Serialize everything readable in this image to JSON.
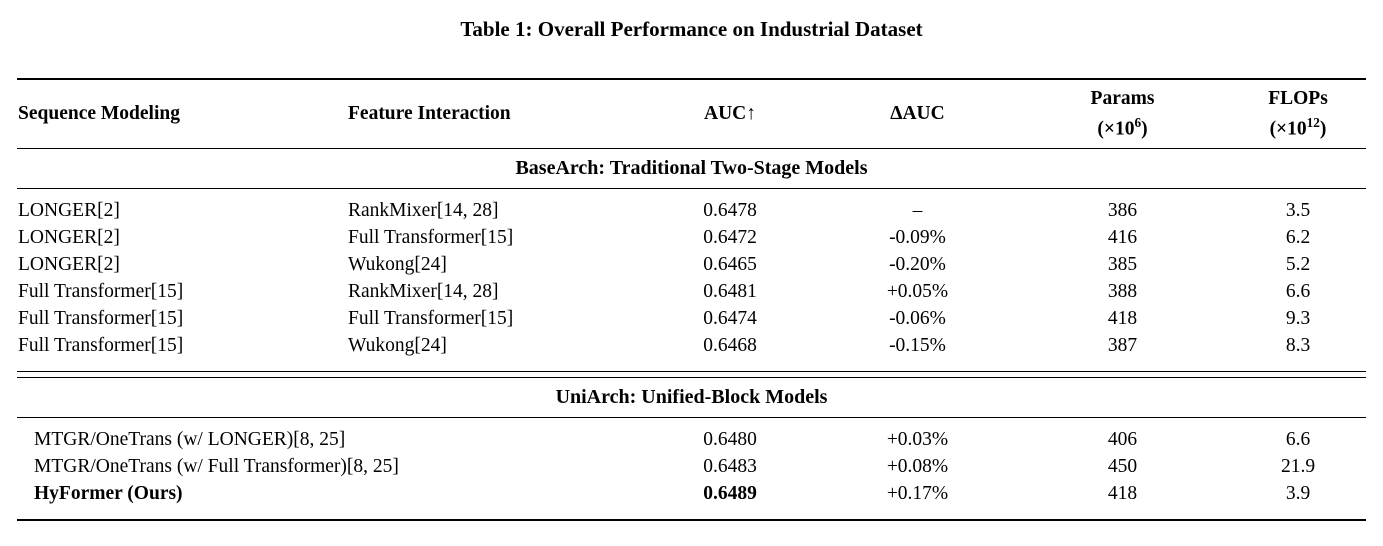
{
  "colors": {
    "background": "#ffffff",
    "text": "#000000",
    "rule": "#000000"
  },
  "title": "Table 1: Overall Performance on Industrial Dataset",
  "table": {
    "columns": [
      {
        "label": "Sequence Modeling",
        "align": "left"
      },
      {
        "label": "Feature Interaction",
        "align": "left"
      },
      {
        "label": "AUC↑",
        "align": "center"
      },
      {
        "label": "ΔAUC",
        "align": "center"
      },
      {
        "label": "Params",
        "sub": {
          "prefix": "(×10",
          "exp": "6",
          "suffix": ")"
        },
        "align": "center"
      },
      {
        "label": "FLOPs",
        "sub": {
          "prefix": "(×10",
          "exp": "12",
          "suffix": ")"
        },
        "align": "center"
      }
    ],
    "sections": [
      {
        "header": "BaseArch: Traditional Two-Stage Models",
        "merged_first_two_columns": false,
        "rows": [
          {
            "sequence_modeling": "LONGER[2]",
            "feature_interaction": "RankMixer[14, 28]",
            "auc": "0.6478",
            "delta_auc": "–",
            "params": "386",
            "flops": "3.5"
          },
          {
            "sequence_modeling": "LONGER[2]",
            "feature_interaction": "Full Transformer[15]",
            "auc": "0.6472",
            "delta_auc": "-0.09%",
            "params": "416",
            "flops": "6.2"
          },
          {
            "sequence_modeling": "LONGER[2]",
            "feature_interaction": "Wukong[24]",
            "auc": "0.6465",
            "delta_auc": "-0.20%",
            "params": "385",
            "flops": "5.2"
          },
          {
            "sequence_modeling": "Full Transformer[15]",
            "feature_interaction": "RankMixer[14, 28]",
            "auc": "0.6481",
            "delta_auc": "+0.05%",
            "params": "388",
            "flops": "6.6"
          },
          {
            "sequence_modeling": "Full Transformer[15]",
            "feature_interaction": "Full Transformer[15]",
            "auc": "0.6474",
            "delta_auc": "-0.06%",
            "params": "418",
            "flops": "9.3"
          },
          {
            "sequence_modeling": "Full Transformer[15]",
            "feature_interaction": "Wukong[24]",
            "auc": "0.6468",
            "delta_auc": "-0.15%",
            "params": "387",
            "flops": "8.3"
          }
        ]
      },
      {
        "header": "UniArch: Unified-Block Models",
        "merged_first_two_columns": true,
        "rows": [
          {
            "model": "MTGR/OneTrans (w/ LONGER)[8, 25]",
            "bold": false,
            "auc": "0.6480",
            "auc_bold": false,
            "delta_auc": "+0.03%",
            "params": "406",
            "flops": "6.6"
          },
          {
            "model": "MTGR/OneTrans (w/ Full Transformer)[8, 25]",
            "bold": false,
            "auc": "0.6483",
            "auc_bold": false,
            "delta_auc": "+0.08%",
            "params": "450",
            "flops": "21.9"
          },
          {
            "model": "HyFormer (Ours)",
            "bold": true,
            "auc": "0.6489",
            "auc_bold": true,
            "delta_auc": "+0.17%",
            "params": "418",
            "flops": "3.9"
          }
        ]
      }
    ]
  }
}
